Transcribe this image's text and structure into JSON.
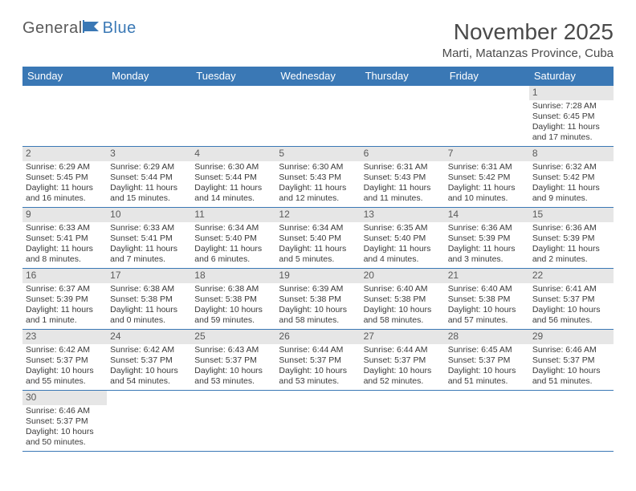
{
  "logo": {
    "general": "General",
    "blue": "Blue"
  },
  "title": "November 2025",
  "location": "Marti, Matanzas Province, Cuba",
  "colors": {
    "header_bg": "#3a78b5",
    "header_fg": "#ffffff",
    "daynum_bg": "#e6e6e6",
    "text": "#3a3a3a",
    "border": "#3a78b5"
  },
  "weekdays": [
    "Sunday",
    "Monday",
    "Tuesday",
    "Wednesday",
    "Thursday",
    "Friday",
    "Saturday"
  ],
  "days": [
    {
      "n": 1,
      "sunrise": "7:28 AM",
      "sunset": "6:45 PM",
      "daylight": "11 hours and 17 minutes."
    },
    {
      "n": 2,
      "sunrise": "6:29 AM",
      "sunset": "5:45 PM",
      "daylight": "11 hours and 16 minutes."
    },
    {
      "n": 3,
      "sunrise": "6:29 AM",
      "sunset": "5:44 PM",
      "daylight": "11 hours and 15 minutes."
    },
    {
      "n": 4,
      "sunrise": "6:30 AM",
      "sunset": "5:44 PM",
      "daylight": "11 hours and 14 minutes."
    },
    {
      "n": 5,
      "sunrise": "6:30 AM",
      "sunset": "5:43 PM",
      "daylight": "11 hours and 12 minutes."
    },
    {
      "n": 6,
      "sunrise": "6:31 AM",
      "sunset": "5:43 PM",
      "daylight": "11 hours and 11 minutes."
    },
    {
      "n": 7,
      "sunrise": "6:31 AM",
      "sunset": "5:42 PM",
      "daylight": "11 hours and 10 minutes."
    },
    {
      "n": 8,
      "sunrise": "6:32 AM",
      "sunset": "5:42 PM",
      "daylight": "11 hours and 9 minutes."
    },
    {
      "n": 9,
      "sunrise": "6:33 AM",
      "sunset": "5:41 PM",
      "daylight": "11 hours and 8 minutes."
    },
    {
      "n": 10,
      "sunrise": "6:33 AM",
      "sunset": "5:41 PM",
      "daylight": "11 hours and 7 minutes."
    },
    {
      "n": 11,
      "sunrise": "6:34 AM",
      "sunset": "5:40 PM",
      "daylight": "11 hours and 6 minutes."
    },
    {
      "n": 12,
      "sunrise": "6:34 AM",
      "sunset": "5:40 PM",
      "daylight": "11 hours and 5 minutes."
    },
    {
      "n": 13,
      "sunrise": "6:35 AM",
      "sunset": "5:40 PM",
      "daylight": "11 hours and 4 minutes."
    },
    {
      "n": 14,
      "sunrise": "6:36 AM",
      "sunset": "5:39 PM",
      "daylight": "11 hours and 3 minutes."
    },
    {
      "n": 15,
      "sunrise": "6:36 AM",
      "sunset": "5:39 PM",
      "daylight": "11 hours and 2 minutes."
    },
    {
      "n": 16,
      "sunrise": "6:37 AM",
      "sunset": "5:39 PM",
      "daylight": "11 hours and 1 minute."
    },
    {
      "n": 17,
      "sunrise": "6:38 AM",
      "sunset": "5:38 PM",
      "daylight": "11 hours and 0 minutes."
    },
    {
      "n": 18,
      "sunrise": "6:38 AM",
      "sunset": "5:38 PM",
      "daylight": "10 hours and 59 minutes."
    },
    {
      "n": 19,
      "sunrise": "6:39 AM",
      "sunset": "5:38 PM",
      "daylight": "10 hours and 58 minutes."
    },
    {
      "n": 20,
      "sunrise": "6:40 AM",
      "sunset": "5:38 PM",
      "daylight": "10 hours and 58 minutes."
    },
    {
      "n": 21,
      "sunrise": "6:40 AM",
      "sunset": "5:38 PM",
      "daylight": "10 hours and 57 minutes."
    },
    {
      "n": 22,
      "sunrise": "6:41 AM",
      "sunset": "5:37 PM",
      "daylight": "10 hours and 56 minutes."
    },
    {
      "n": 23,
      "sunrise": "6:42 AM",
      "sunset": "5:37 PM",
      "daylight": "10 hours and 55 minutes."
    },
    {
      "n": 24,
      "sunrise": "6:42 AM",
      "sunset": "5:37 PM",
      "daylight": "10 hours and 54 minutes."
    },
    {
      "n": 25,
      "sunrise": "6:43 AM",
      "sunset": "5:37 PM",
      "daylight": "10 hours and 53 minutes."
    },
    {
      "n": 26,
      "sunrise": "6:44 AM",
      "sunset": "5:37 PM",
      "daylight": "10 hours and 53 minutes."
    },
    {
      "n": 27,
      "sunrise": "6:44 AM",
      "sunset": "5:37 PM",
      "daylight": "10 hours and 52 minutes."
    },
    {
      "n": 28,
      "sunrise": "6:45 AM",
      "sunset": "5:37 PM",
      "daylight": "10 hours and 51 minutes."
    },
    {
      "n": 29,
      "sunrise": "6:46 AM",
      "sunset": "5:37 PM",
      "daylight": "10 hours and 51 minutes."
    },
    {
      "n": 30,
      "sunrise": "6:46 AM",
      "sunset": "5:37 PM",
      "daylight": "10 hours and 50 minutes."
    }
  ],
  "labels": {
    "sunrise": "Sunrise: ",
    "sunset": "Sunset: ",
    "daylight": "Daylight: "
  },
  "first_weekday_index": 6
}
